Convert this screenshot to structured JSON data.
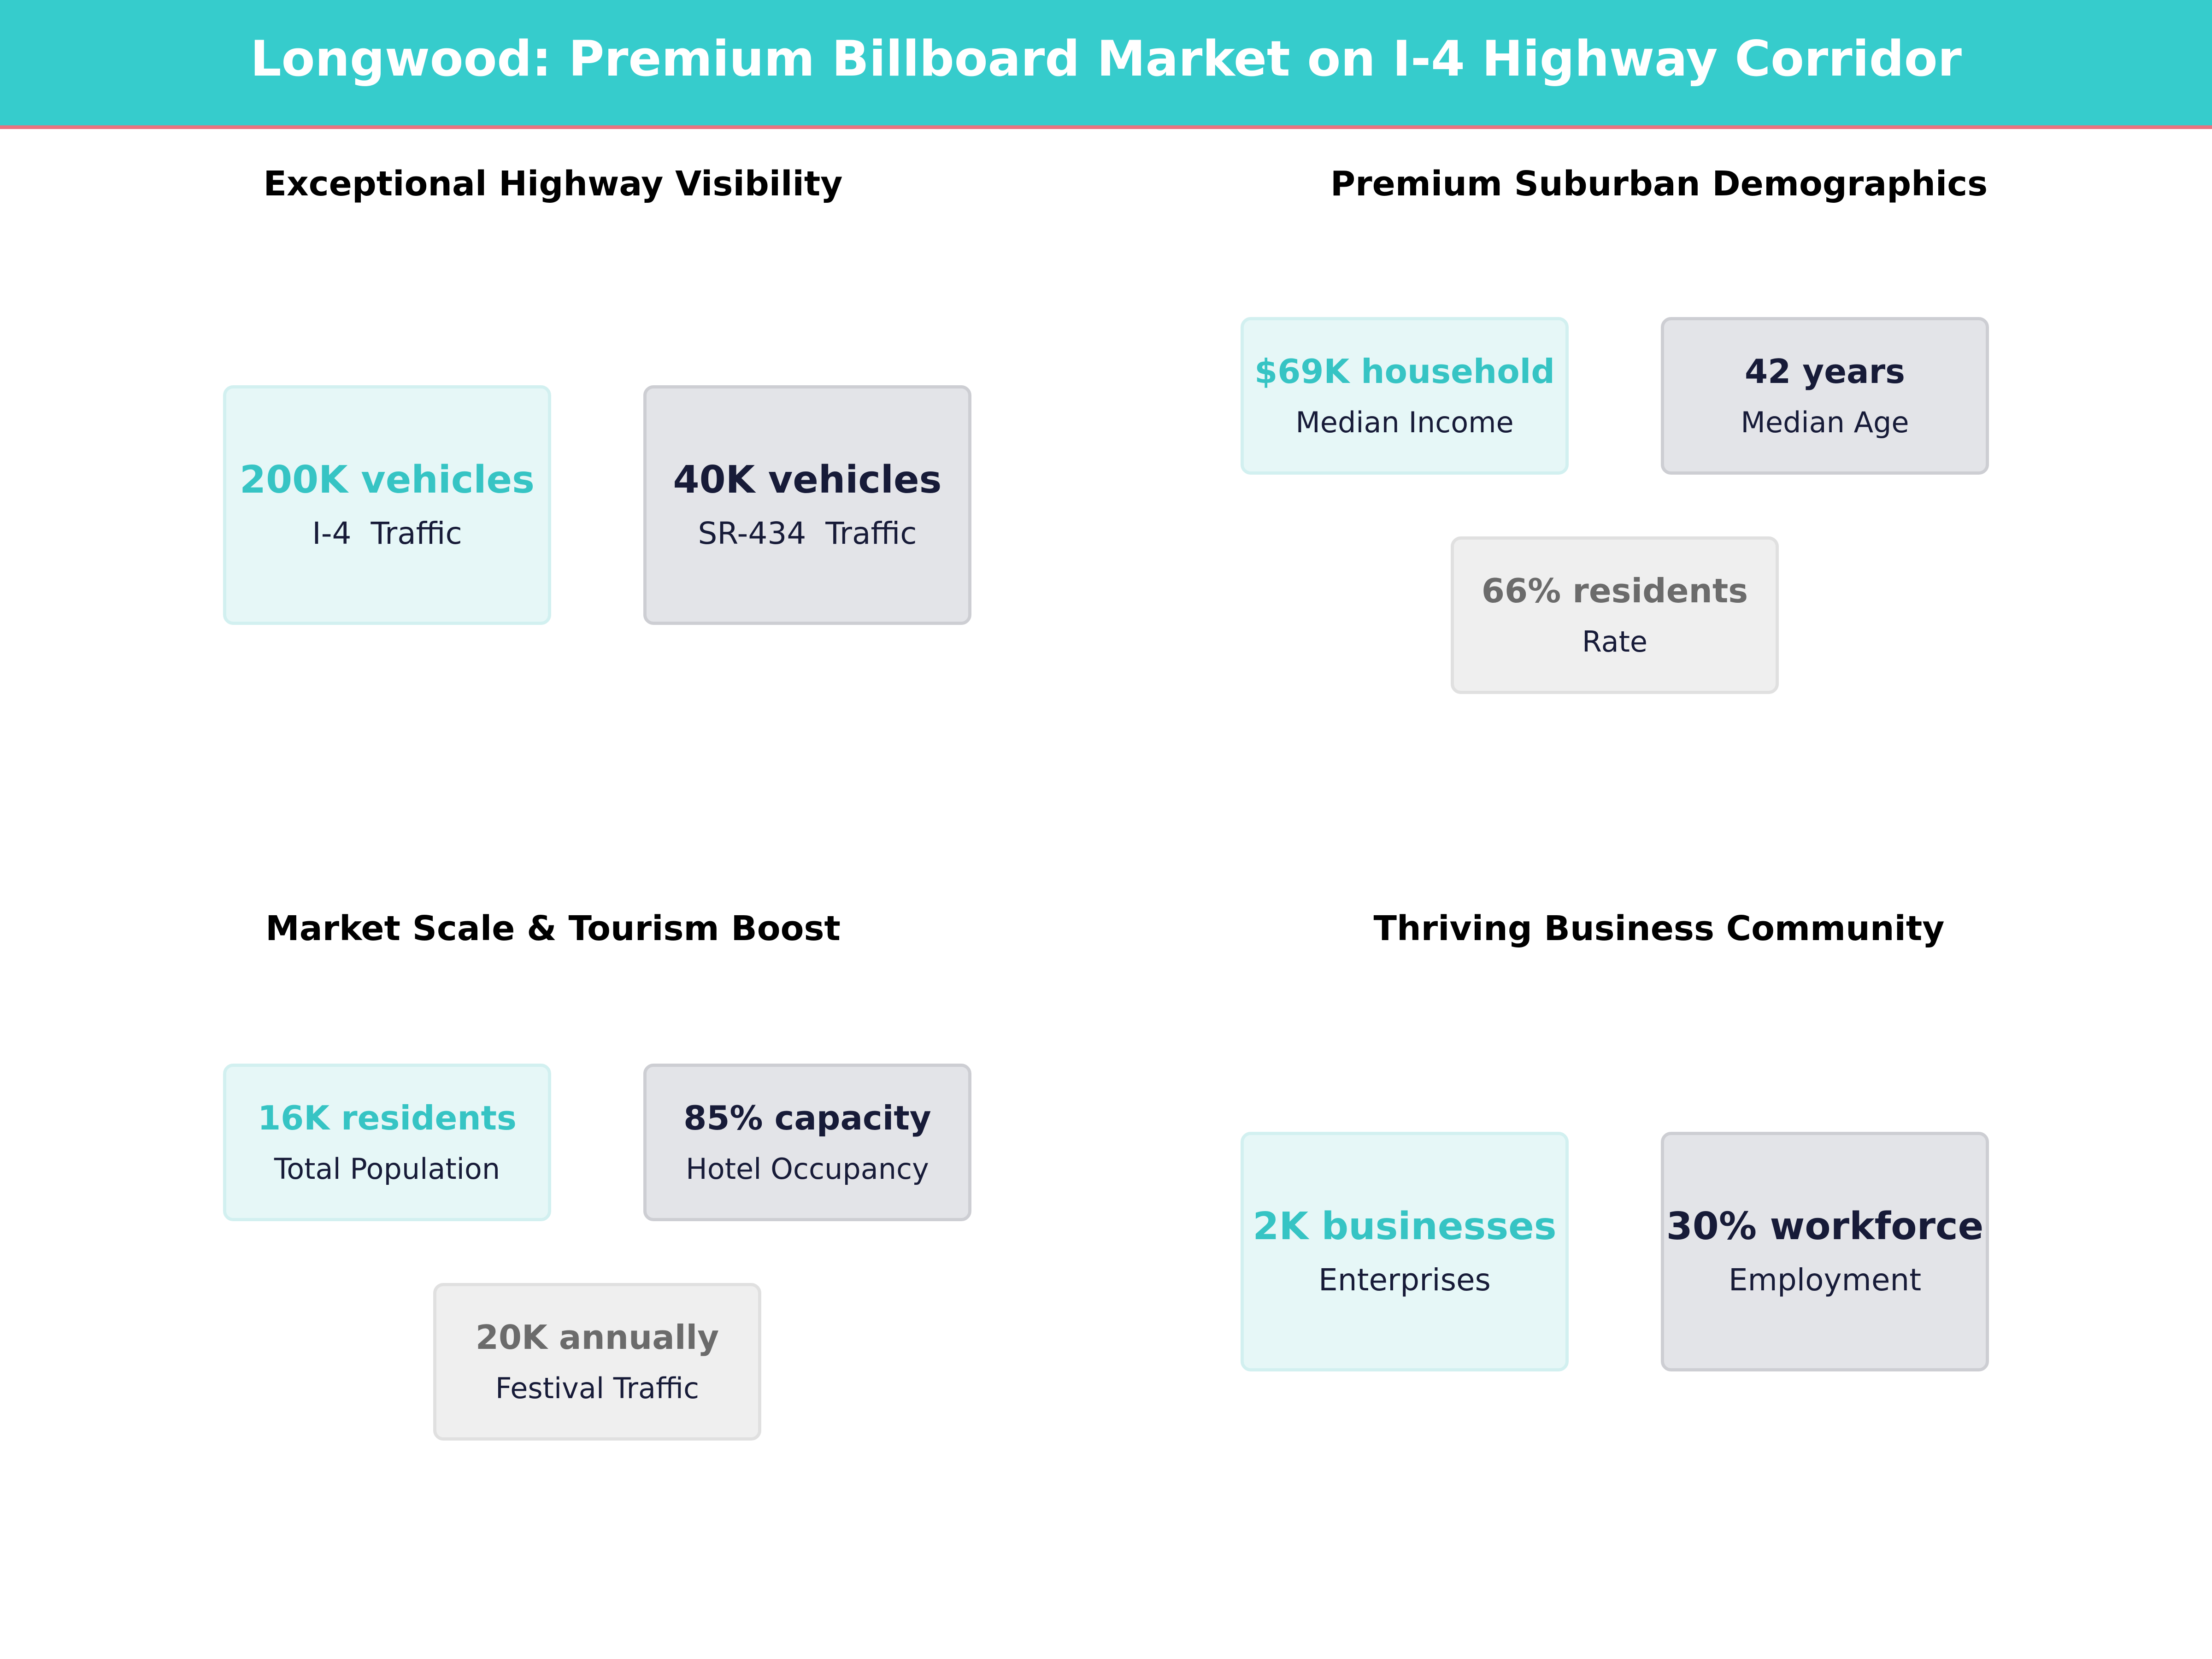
{
  "header": {
    "title": "Longwood: Premium Billboard Market on I-4 Highway Corridor",
    "background_color": "#36CCCC",
    "accent_line_color": "#E8737F"
  },
  "colors": {
    "teal": "#36C4C4",
    "navy": "#171B38",
    "gray": "#6B6B6B"
  },
  "sections": {
    "highway": {
      "title": "Exceptional Highway Visibility",
      "cards": [
        {
          "value": "200K vehicles",
          "label": "I-4  Traffic",
          "style": "teal"
        },
        {
          "value": "40K vehicles",
          "label": "SR-434  Traffic",
          "style": "navy"
        }
      ]
    },
    "demographics": {
      "title": "Premium Suburban Demographics",
      "cards": [
        {
          "value": "$69K household",
          "label": "Median Income",
          "style": "teal"
        },
        {
          "value": "42 years",
          "label": "Median Age",
          "style": "navy"
        },
        {
          "value": "66% residents",
          "label": "Rate",
          "style": "gray"
        }
      ]
    },
    "market": {
      "title": "Market Scale & Tourism Boost",
      "cards": [
        {
          "value": "16K residents",
          "label": "Total Population",
          "style": "teal"
        },
        {
          "value": "85% capacity",
          "label": "Hotel Occupancy",
          "style": "navy"
        },
        {
          "value": "20K annually",
          "label": "Festival Traffic",
          "style": "gray"
        }
      ]
    },
    "business": {
      "title": "Thriving Business Community",
      "cards": [
        {
          "value": "2K businesses",
          "label": "Enterprises",
          "style": "teal"
        },
        {
          "value": "30% workforce",
          "label": "Employment",
          "style": "navy"
        }
      ]
    }
  }
}
